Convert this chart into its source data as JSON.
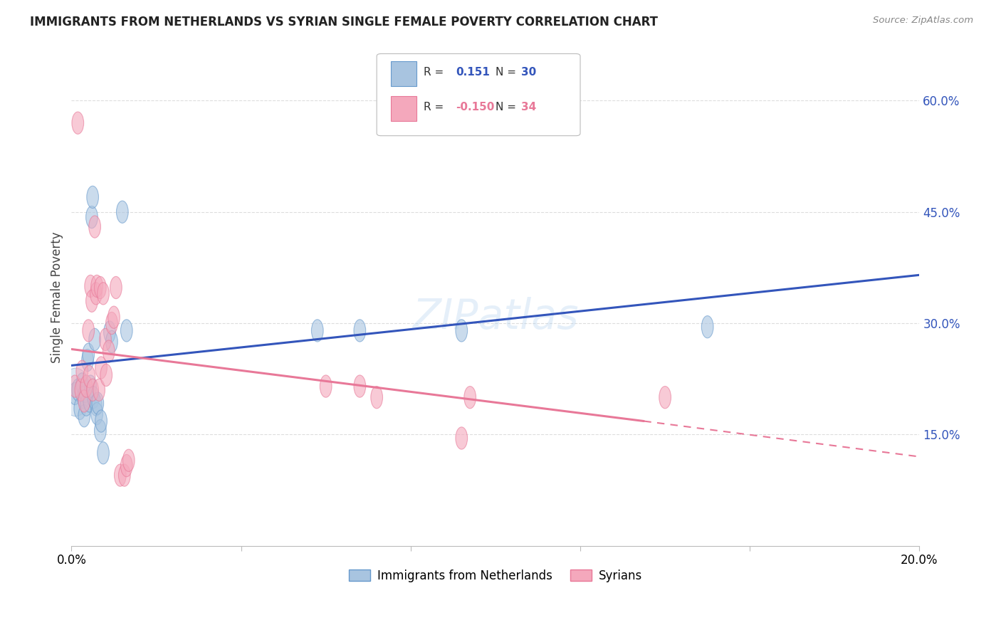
{
  "title": "IMMIGRANTS FROM NETHERLANDS VS SYRIAN SINGLE FEMALE POVERTY CORRELATION CHART",
  "source": "Source: ZipAtlas.com",
  "ylabel": "Single Female Poverty",
  "y_ticks": [
    0.15,
    0.3,
    0.45,
    0.6
  ],
  "y_tick_labels": [
    "15.0%",
    "30.0%",
    "45.0%",
    "60.0%"
  ],
  "xlim": [
    0.0,
    0.2
  ],
  "ylim": [
    0.0,
    0.67
  ],
  "watermark": "ZIPatlas",
  "blue_R": 0.151,
  "blue_N": 30,
  "pink_R": -0.15,
  "pink_N": 34,
  "blue_color": "#A8C4E0",
  "pink_color": "#F4A8BC",
  "blue_edge_color": "#6699CC",
  "pink_edge_color": "#E87898",
  "blue_line_color": "#3355BB",
  "pink_line_color": "#E87898",
  "blue_x": [
    0.0008,
    0.0015,
    0.002,
    0.0025,
    0.0028,
    0.003,
    0.0032,
    0.0035,
    0.0038,
    0.004,
    0.0042,
    0.0045,
    0.0048,
    0.005,
    0.0052,
    0.0055,
    0.0058,
    0.006,
    0.0062,
    0.0068,
    0.007,
    0.0075,
    0.009,
    0.0095,
    0.012,
    0.013,
    0.058,
    0.068,
    0.092,
    0.15
  ],
  "blue_y": [
    0.205,
    0.21,
    0.185,
    0.218,
    0.2,
    0.175,
    0.208,
    0.19,
    0.25,
    0.258,
    0.195,
    0.215,
    0.443,
    0.47,
    0.2,
    0.278,
    0.19,
    0.178,
    0.192,
    0.155,
    0.168,
    0.125,
    0.288,
    0.275,
    0.45,
    0.29,
    0.29,
    0.29,
    0.29,
    0.295
  ],
  "pink_x": [
    0.0008,
    0.0015,
    0.0022,
    0.0025,
    0.003,
    0.0035,
    0.004,
    0.0042,
    0.0045,
    0.0048,
    0.005,
    0.0055,
    0.0058,
    0.006,
    0.0065,
    0.0068,
    0.007,
    0.0075,
    0.008,
    0.0082,
    0.0088,
    0.0095,
    0.01,
    0.0105,
    0.0115,
    0.0125,
    0.013,
    0.0135,
    0.06,
    0.068,
    0.072,
    0.092,
    0.094,
    0.14
  ],
  "pink_y": [
    0.215,
    0.57,
    0.21,
    0.235,
    0.195,
    0.215,
    0.29,
    0.228,
    0.35,
    0.33,
    0.21,
    0.43,
    0.34,
    0.35,
    0.21,
    0.348,
    0.24,
    0.34,
    0.278,
    0.23,
    0.262,
    0.3,
    0.308,
    0.348,
    0.095,
    0.095,
    0.108,
    0.115,
    0.215,
    0.215,
    0.2,
    0.145,
    0.2,
    0.2
  ],
  "legend_label_blue": "Immigrants from Netherlands",
  "legend_label_pink": "Syrians",
  "background_color": "#FFFFFF",
  "grid_color": "#DDDDDD",
  "blue_line_x0": 0.0,
  "blue_line_y0": 0.243,
  "blue_line_x1": 0.2,
  "blue_line_y1": 0.365,
  "pink_line_x0": 0.0,
  "pink_line_y0": 0.265,
  "pink_line_x1_solid": 0.135,
  "pink_line_y1_solid": 0.168,
  "pink_line_x1_dash": 0.2,
  "pink_line_y1_dash": 0.12
}
